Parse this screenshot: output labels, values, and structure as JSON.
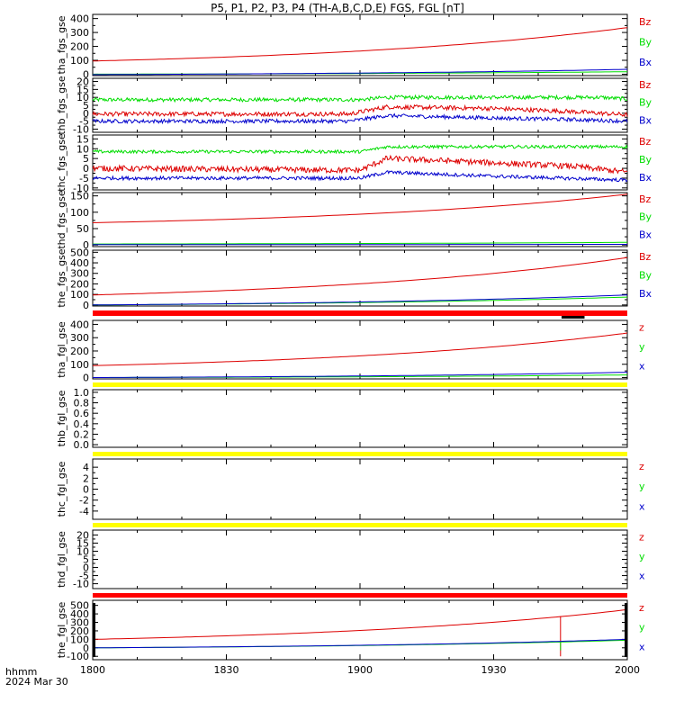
{
  "title": "P5, P1, P2, P3, P4 (TH-A,B,C,D,E) FGS, FGL [nT]",
  "footer": {
    "line1": "hhmm",
    "line2": "2024 Mar 30"
  },
  "colors": {
    "x": "#0000cc",
    "y": "#00dd00",
    "z": "#dd0000",
    "bar_red": "#ff0000",
    "bar_yellow": "#ffff00",
    "axis": "#000000"
  },
  "chart_data": [
    {
      "id": "tha_fgs_gse",
      "type": "line",
      "ylabel": "tha_fgs_gse",
      "ylim": [
        -10,
        430
      ],
      "yticks": [
        "400",
        "300",
        "200",
        "100",
        "0"
      ],
      "ytick_values": [
        400,
        300,
        200,
        100,
        0
      ],
      "legend": [
        "Bz",
        "By",
        "Bx"
      ],
      "series": [
        {
          "name": "Bz",
          "kind": "exp",
          "start": 95,
          "end": 335
        },
        {
          "name": "By",
          "kind": "exp",
          "start": 0,
          "end": 18
        },
        {
          "name": "Bx",
          "kind": "exp",
          "start": -3,
          "end": 35
        }
      ]
    },
    {
      "id": "thb_fgs_gse",
      "type": "line",
      "ylabel": "thb_fgs_gse",
      "ylim": [
        -12,
        22
      ],
      "yticks": [
        "20",
        "15",
        "10",
        "5",
        "0",
        "-5",
        "-10"
      ],
      "ytick_values": [
        20,
        15,
        10,
        5,
        0,
        -5,
        -10
      ],
      "legend": [
        "Bz",
        "By",
        "Bx"
      ],
      "series": [
        {
          "name": "By",
          "kind": "noisy",
          "levels": [
            [
              0,
              8.5
            ],
            [
              0.5,
              8.5
            ],
            [
              0.55,
              10
            ],
            [
              0.95,
              10
            ],
            [
              1,
              9
            ]
          ],
          "noise": 1.2
        },
        {
          "name": "Bz",
          "kind": "noisy",
          "levels": [
            [
              0,
              -0.5
            ],
            [
              0.48,
              -0.5
            ],
            [
              0.55,
              4
            ],
            [
              0.75,
              3
            ],
            [
              0.9,
              1
            ],
            [
              1,
              -1
            ]
          ],
          "noise": 1.4
        },
        {
          "name": "Bx",
          "kind": "noisy",
          "levels": [
            [
              0,
              -5
            ],
            [
              0.48,
              -5
            ],
            [
              0.55,
              -1.5
            ],
            [
              0.75,
              -3
            ],
            [
              0.9,
              -4
            ],
            [
              1,
              -5
            ]
          ],
          "noise": 1.2
        }
      ]
    },
    {
      "id": "thc_fgs_gse",
      "type": "line",
      "ylabel": "thc_fgs_gse",
      "ylim": [
        -11,
        17
      ],
      "yticks": [
        "15",
        "10",
        "5",
        "0",
        "-5",
        "-10"
      ],
      "ytick_values": [
        15,
        10,
        5,
        0,
        -5,
        -10
      ],
      "legend": [
        "Bz",
        "By",
        "Bx"
      ],
      "series": [
        {
          "name": "By",
          "kind": "noisy",
          "levels": [
            [
              0,
              8.5
            ],
            [
              0.5,
              8.5
            ],
            [
              0.55,
              11
            ],
            [
              1,
              11
            ]
          ],
          "noise": 0.8
        },
        {
          "name": "Bz",
          "kind": "noisy",
          "levels": [
            [
              0,
              0
            ],
            [
              0.5,
              -1
            ],
            [
              0.55,
              5
            ],
            [
              0.65,
              4
            ],
            [
              0.9,
              1
            ],
            [
              1,
              -2
            ]
          ],
          "noise": 1.5
        },
        {
          "name": "Bx",
          "kind": "noisy",
          "levels": [
            [
              0,
              -5
            ],
            [
              0.5,
              -5
            ],
            [
              0.55,
              -2
            ],
            [
              0.75,
              -4
            ],
            [
              1,
              -6
            ]
          ],
          "noise": 0.9
        }
      ]
    },
    {
      "id": "thd_fgs_gse",
      "type": "line",
      "ylabel": "thd_fgs_gse",
      "ylim": [
        -5,
        160
      ],
      "yticks": [
        "150",
        "100",
        "50",
        "0"
      ],
      "ytick_values": [
        150,
        100,
        50,
        0
      ],
      "legend": [
        "Bz",
        "By",
        "Bx"
      ],
      "series": [
        {
          "name": "Bz",
          "kind": "exp",
          "start": 68,
          "end": 155
        },
        {
          "name": "By",
          "kind": "exp",
          "start": 3,
          "end": 8
        },
        {
          "name": "Bx",
          "kind": "exp",
          "start": 1,
          "end": 2
        }
      ]
    },
    {
      "id": "the_fgs_gse",
      "type": "line",
      "ylabel": "the_fgs_gse",
      "ylim": [
        -10,
        520
      ],
      "yticks": [
        "500",
        "400",
        "300",
        "200",
        "100",
        "0"
      ],
      "ytick_values": [
        500,
        400,
        300,
        200,
        100,
        0
      ],
      "legend": [
        "Bz",
        "By",
        "Bx"
      ],
      "series": [
        {
          "name": "Bz",
          "kind": "exp",
          "start": 95,
          "end": 450
        },
        {
          "name": "By",
          "kind": "exp",
          "start": 0,
          "end": 75
        },
        {
          "name": "Bx",
          "kind": "exp",
          "start": 0,
          "end": 95
        }
      ]
    },
    {
      "id": "tha_fgl_gse",
      "type": "line",
      "ylabel": "tha_fgl_gse",
      "ylim": [
        -10,
        430
      ],
      "yticks": [
        "400",
        "300",
        "200",
        "100",
        "0"
      ],
      "ytick_values": [
        400,
        300,
        200,
        100,
        0
      ],
      "legend": [
        "z",
        "y",
        "x"
      ],
      "series": [
        {
          "name": "z",
          "kind": "exp",
          "start": 90,
          "end": 335
        },
        {
          "name": "y",
          "kind": "exp",
          "start": 0,
          "end": 20
        },
        {
          "name": "x",
          "kind": "exp",
          "start": 0,
          "end": 40
        }
      ]
    },
    {
      "id": "thb_fgl_gse",
      "type": "line",
      "ylabel": "thb_fgl_gse",
      "ylim": [
        -0.05,
        1.05
      ],
      "yticks": [
        "1.0",
        "0.8",
        "0.6",
        "0.4",
        "0.2",
        "0.0"
      ],
      "ytick_values": [
        1.0,
        0.8,
        0.6,
        0.4,
        0.2,
        0.0
      ],
      "legend": [],
      "series": []
    },
    {
      "id": "thc_fgl_gse",
      "type": "line",
      "ylabel": "thc_fgl_gse",
      "ylim": [
        -5.5,
        5.5
      ],
      "yticks": [
        "4",
        "2",
        "0",
        "-2",
        "-4"
      ],
      "ytick_values": [
        4,
        2,
        0,
        -2,
        -4
      ],
      "legend": [
        "z",
        "y",
        "x"
      ],
      "series": []
    },
    {
      "id": "thd_fgl_gse",
      "type": "line",
      "ylabel": "thd_fgl_gse",
      "ylim": [
        -13,
        23
      ],
      "yticks": [
        "20",
        "15",
        "10",
        "5",
        "0",
        "-5",
        "-10"
      ],
      "ytick_values": [
        20,
        15,
        10,
        5,
        0,
        -5,
        -10
      ],
      "legend": [
        "z",
        "y",
        "x"
      ],
      "series": []
    },
    {
      "id": "the_fgl_gse",
      "type": "line",
      "ylabel": "the_fgl_gse",
      "ylim": [
        -140,
        560
      ],
      "yticks": [
        "500",
        "400",
        "300",
        "200",
        "100",
        "0",
        "-100"
      ],
      "ytick_values": [
        500,
        400,
        300,
        200,
        100,
        0,
        -100
      ],
      "legend": [
        "z",
        "y",
        "x"
      ],
      "series": [
        {
          "name": "z",
          "kind": "exp",
          "start": 100,
          "end": 450,
          "spike": {
            "at": 0.877,
            "to": -100
          }
        },
        {
          "name": "y",
          "kind": "exp",
          "start": 0,
          "end": 90,
          "spike": {
            "at": 0.877,
            "to": -30
          }
        },
        {
          "name": "x",
          "kind": "exp",
          "start": 0,
          "end": 100
        }
      ]
    }
  ],
  "status_bars": [
    {
      "after_panel": 4,
      "color": "red",
      "marks": [
        {
          "from": 0.877,
          "to": 0.92
        }
      ]
    },
    {
      "after_panel": 5,
      "color": "yellow",
      "marks": []
    },
    {
      "after_panel": 6,
      "color": "yellow",
      "marks": []
    },
    {
      "after_panel": 7,
      "color": "yellow",
      "marks": []
    },
    {
      "after_panel": 8,
      "color": "red",
      "marks": []
    }
  ],
  "x_axis": {
    "ticks": [
      "1800",
      "1830",
      "1900",
      "1930",
      "2000"
    ],
    "tick_values": [
      0,
      30,
      60,
      90,
      120
    ],
    "range": [
      0,
      120
    ]
  }
}
